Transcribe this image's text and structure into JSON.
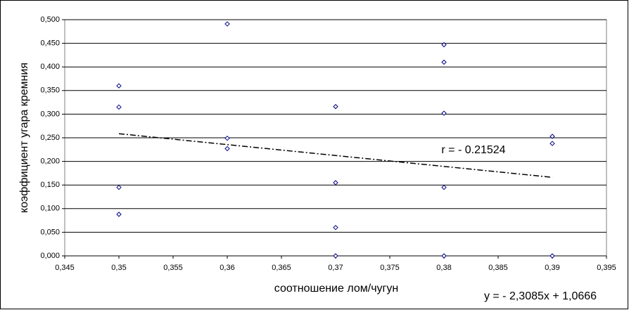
{
  "chart_data": {
    "type": "scatter",
    "x_label": "соотношение лом/чугун",
    "y_label": "коэффициент угара кремния",
    "x": [
      0.35,
      0.35,
      0.35,
      0.35,
      0.36,
      0.36,
      0.36,
      0.37,
      0.37,
      0.37,
      0.37,
      0.38,
      0.38,
      0.38,
      0.38,
      0.38,
      0.39,
      0.39,
      0.39
    ],
    "values": [
      0.36,
      0.315,
      0.145,
      0.088,
      0.491,
      0.249,
      0.227,
      0.316,
      0.155,
      0.06,
      0.0,
      0.447,
      0.41,
      0.302,
      0.145,
      0.0,
      0.253,
      0.238,
      0.0
    ],
    "color": "#000080",
    "xlim": [
      0.345,
      0.395
    ],
    "ylim": [
      0,
      0.5
    ],
    "xticks": [
      {
        "value": 0.345,
        "label": "0,345"
      },
      {
        "value": 0.35,
        "label": "0,35"
      },
      {
        "value": 0.355,
        "label": "0,355"
      },
      {
        "value": 0.36,
        "label": "0,36"
      },
      {
        "value": 0.365,
        "label": "0,365"
      },
      {
        "value": 0.37,
        "label": "0,37"
      },
      {
        "value": 0.375,
        "label": "0,375"
      },
      {
        "value": 0.38,
        "label": "0,38"
      },
      {
        "value": 0.385,
        "label": "0,385"
      },
      {
        "value": 0.39,
        "label": "0,39"
      },
      {
        "value": 0.395,
        "label": "0,395"
      }
    ],
    "yticks": [
      {
        "value": 0,
        "label": "0,000"
      },
      {
        "value": 0.05,
        "label": "0,050"
      },
      {
        "value": 0.1,
        "label": "0,100"
      },
      {
        "value": 0.15,
        "label": "0,150"
      },
      {
        "value": 0.2,
        "label": "0,200"
      },
      {
        "value": 0.25,
        "label": "0,250"
      },
      {
        "value": 0.3,
        "label": "0,300"
      },
      {
        "value": 0.35,
        "label": "0,350"
      },
      {
        "value": 0.4,
        "label": "0,400"
      },
      {
        "value": 0.45,
        "label": "0,450"
      },
      {
        "value": 0.5,
        "label": "0,500"
      }
    ],
    "grid": true,
    "trendline": {
      "slope": -2.3085,
      "intercept": 1.0666,
      "xlim": [
        0.35,
        0.39
      ],
      "label": "y = - 2,3085x + 1,0666",
      "r_label": "r = - 0.21524"
    }
  }
}
